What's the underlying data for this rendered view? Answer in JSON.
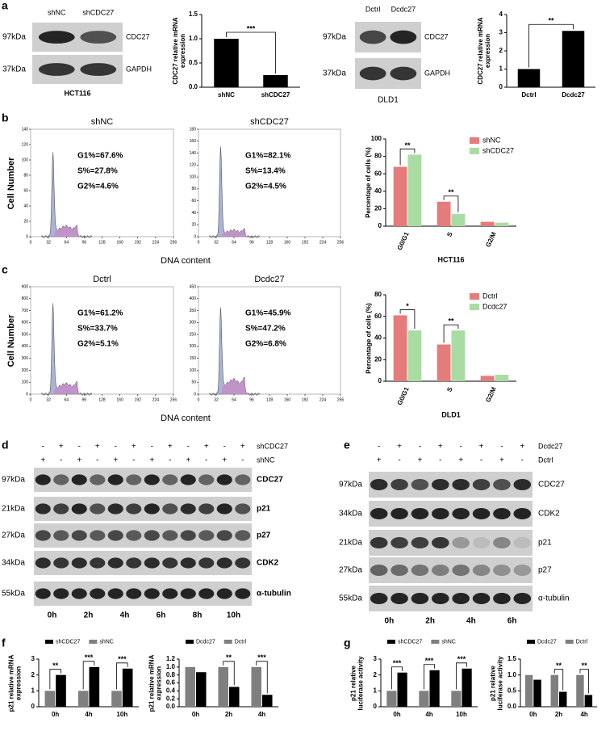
{
  "panel_labels": [
    "a",
    "b",
    "c",
    "d",
    "e",
    "f",
    "g"
  ],
  "blots": [
    {
      "lanes": [
        "shNC",
        "shCDC27"
      ],
      "markers": [
        "97kDa",
        "37kDa"
      ],
      "proteins": [
        "CDC27",
        "GAPDH"
      ],
      "cell_line": "HCT116"
    },
    {
      "lanes": [
        "Dctrl",
        "Dcdc27"
      ],
      "markers": [
        "97kDa",
        "37kDa"
      ],
      "proteins": [
        "CDC27",
        "GAPDH"
      ],
      "cell_line": "DLD1"
    },
    {
      "conditions": [
        {
          "name": "shCDC27",
          "signs": [
            "-",
            "+",
            "-",
            "+",
            "-",
            "+",
            "-",
            "+",
            "-",
            "+",
            "-",
            "+"
          ]
        },
        {
          "name": "shNC",
          "signs": [
            "+",
            "-",
            "+",
            "-",
            "+",
            "-",
            "+",
            "-",
            "+",
            "-",
            "+",
            "-"
          ]
        }
      ],
      "markers": [
        "97kDa",
        "21kDa",
        "27kDa",
        "34kDa",
        "55kDa"
      ],
      "proteins": [
        "CDC27",
        "p21",
        "p27",
        "CDK2",
        "α-tubulin"
      ],
      "times": [
        "0h",
        "2h",
        "4h",
        "6h",
        "8h",
        "10h"
      ]
    },
    {
      "conditions": [
        {
          "name": "Dcdc27",
          "signs": [
            "-",
            "+",
            "-",
            "+",
            "-",
            "+",
            "-",
            "+"
          ]
        },
        {
          "name": "Dctrl",
          "signs": [
            "+",
            "-",
            "+",
            "-",
            "+",
            "-",
            "+",
            "-"
          ]
        }
      ],
      "markers": [
        "97kDa",
        "34kDa",
        "21kDa",
        "27kDa",
        "55kDa"
      ],
      "proteins": [
        "CDC27",
        "CDK2",
        "p21",
        "p27",
        "α-tubulin"
      ],
      "times": [
        "0h",
        "2h",
        "4h",
        "6h"
      ]
    }
  ],
  "flow_groups": [
    {
      "ylabel": "Cell Number",
      "xlabel": "DNA content",
      "plots": [
        {
          "title": "shNC",
          "stats": [
            "G1%=67.6%",
            "S%=27.8%",
            "G2%=4.6%"
          ],
          "xlim": [
            0,
            256
          ],
          "xticks": [
            0,
            32,
            64,
            96,
            128,
            160,
            192,
            224,
            256
          ],
          "ylim": [
            0,
            140
          ],
          "yticks": [
            0,
            20,
            40,
            60,
            80,
            100,
            120,
            140
          ]
        },
        {
          "title": "shCDC27",
          "stats": [
            "G1%=82.1%",
            "S%=13.4%",
            "G2%=4.5%"
          ],
          "xlim": [
            0,
            256
          ],
          "xticks": [
            0,
            32,
            64,
            96,
            128,
            160,
            192,
            224,
            256
          ],
          "ylim": [
            0,
            180
          ],
          "yticks": [
            0,
            20,
            40,
            60,
            80,
            100,
            120,
            140,
            160,
            180
          ]
        }
      ]
    },
    {
      "ylabel": "Cell Number",
      "xlabel": "DNA content",
      "plots": [
        {
          "title": "Dctrl",
          "stats": [
            "G1%=61.2%",
            "S%=33.7%",
            "G2%=5.1%"
          ],
          "xlim": [
            0,
            256
          ],
          "xticks": [
            0,
            32,
            64,
            96,
            128,
            160,
            192,
            224,
            256
          ],
          "ylim": [
            0,
            900
          ],
          "yticks": [
            0,
            100,
            200,
            300,
            400,
            500,
            600,
            700,
            800,
            900
          ]
        },
        {
          "title": "Dcdc27",
          "stats": [
            "G1%=45.9%",
            "S%=47.2%",
            "G2%=6.8%"
          ],
          "xlim": [
            0,
            256
          ],
          "xticks": [
            0,
            32,
            64,
            96,
            128,
            160,
            192,
            224,
            256
          ],
          "ylim": [
            0,
            450
          ],
          "yticks": [
            0,
            50,
            100,
            150,
            200,
            250,
            300,
            350,
            400,
            450
          ]
        }
      ]
    }
  ],
  "chart_data": [
    {
      "type": "bar",
      "ylabel": "CDC27 relative mRNA expression",
      "categories": [
        "shNC",
        "shCDC27"
      ],
      "values": [
        1.0,
        0.25
      ],
      "color": "#000000",
      "ylim": [
        0,
        1.5
      ],
      "yticks": [
        {
          "value": 0,
          "label": "0.0"
        },
        {
          "value": 0.5,
          "label": "0.5"
        },
        {
          "value": 1,
          "label": "1.0"
        },
        {
          "value": 1.5,
          "label": "1.5"
        }
      ],
      "bracket": "***"
    },
    {
      "type": "bar",
      "ylabel": "CDC27 relative mRNA expression",
      "categories": [
        "Dctrl",
        "Dcdc27"
      ],
      "values": [
        1.0,
        3.1
      ],
      "color": "#000000",
      "ylim": [
        0,
        4
      ],
      "yticks": [
        0,
        1,
        2,
        3,
        4
      ],
      "bracket": "**"
    },
    {
      "type": "bar",
      "ylabel": "Percentage of cells (%)",
      "xlabel": "HCT116",
      "categories": [
        "G0/G1",
        "S",
        "G2/M"
      ],
      "series": [
        {
          "name": "shNC",
          "color": "#e57b7b",
          "values": [
            68,
            28,
            5
          ]
        },
        {
          "name": "shCDC27",
          "color": "#a9dca2",
          "values": [
            82,
            14,
            4
          ]
        }
      ],
      "ylim": [
        0,
        100
      ],
      "yticks": [
        0,
        20,
        40,
        60,
        80,
        100
      ],
      "annotations": [
        "**",
        "**",
        null
      ],
      "legend": "upper right"
    },
    {
      "type": "bar",
      "ylabel": "Percentage of cells (%)",
      "xlabel": "DLD1",
      "categories": [
        "G0/G1",
        "S",
        "G2/M"
      ],
      "series": [
        {
          "name": "Dctrl",
          "color": "#e57b7b",
          "values": [
            61,
            34,
            5
          ]
        },
        {
          "name": "Dcdc27",
          "color": "#a9dca2",
          "values": [
            47,
            47,
            6
          ]
        }
      ],
      "ylim": [
        0,
        80
      ],
      "yticks": [
        0,
        20,
        40,
        60,
        80
      ],
      "annotations": [
        "*",
        "**",
        null
      ],
      "legend": "upper right"
    },
    {
      "type": "bar",
      "ylabel": "p21 relative mRNA expression",
      "categories": [
        "0h",
        "4h",
        "10h"
      ],
      "series": [
        {
          "name": "shCDC27",
          "color": "#000000",
          "values": [
            2.0,
            2.5,
            2.4
          ]
        },
        {
          "name": "shNC",
          "color": "#7f7f7f",
          "values": [
            1,
            1,
            1
          ]
        }
      ],
      "ylim": [
        0,
        3
      ],
      "yticks": [
        0,
        1,
        2,
        3
      ],
      "annotations": [
        "**",
        "***",
        "***"
      ],
      "legend": "top"
    },
    {
      "type": "bar",
      "ylabel": "p21 relative mRNA expression",
      "categories": [
        "0h",
        "2h",
        "4h"
      ],
      "series": [
        {
          "name": "Dcdc27",
          "color": "#000000",
          "values": [
            0.87,
            0.5,
            0.3
          ]
        },
        {
          "name": "Dctrl",
          "color": "#7f7f7f",
          "values": [
            1,
            1,
            1
          ]
        }
      ],
      "ylim": [
        0,
        1.2
      ],
      "yticks": [
        {
          "value": 0,
          "label": "0.0"
        },
        {
          "value": 0.2,
          "label": "0.2"
        },
        {
          "value": 0.4,
          "label": "0.4"
        },
        {
          "value": 0.6,
          "label": "0.6"
        },
        {
          "value": 0.8,
          "label": "0.8"
        },
        {
          "value": 1,
          "label": "1.0"
        },
        {
          "value": 1.2,
          "label": "1.2"
        }
      ],
      "annotations": [
        null,
        "**",
        "***"
      ],
      "legend": "top"
    },
    {
      "type": "bar",
      "ylabel": "p21 relative luciferase activity",
      "categories": [
        "0h",
        "4h",
        "10h"
      ],
      "series": [
        {
          "name": "shCDC27",
          "color": "#000000",
          "values": [
            2.15,
            2.3,
            2.4
          ]
        },
        {
          "name": "shNC",
          "color": "#7f7f7f",
          "values": [
            1,
            1,
            1
          ]
        }
      ],
      "ylim": [
        0,
        3
      ],
      "yticks": [
        0,
        1,
        2,
        3
      ],
      "annotations": [
        "***",
        "***",
        "***"
      ],
      "legend": "top"
    },
    {
      "type": "bar",
      "ylabel": "p21 relative luciferase activity",
      "categories": [
        "0h",
        "2h",
        "4h"
      ],
      "series": [
        {
          "name": "Dcdc27",
          "color": "#000000",
          "values": [
            0.85,
            0.47,
            0.37
          ]
        },
        {
          "name": "Dctrl",
          "color": "#7f7f7f",
          "values": [
            1,
            1,
            1
          ]
        }
      ],
      "ylim": [
        0,
        1.5
      ],
      "yticks": [
        {
          "value": 0,
          "label": "0.0"
        },
        {
          "value": 0.5,
          "label": "0.5"
        },
        {
          "value": 1,
          "label": "1.0"
        },
        {
          "value": 1.5,
          "label": "1.5"
        }
      ],
      "annotations": [
        null,
        "**",
        "**"
      ],
      "legend": "top"
    }
  ]
}
